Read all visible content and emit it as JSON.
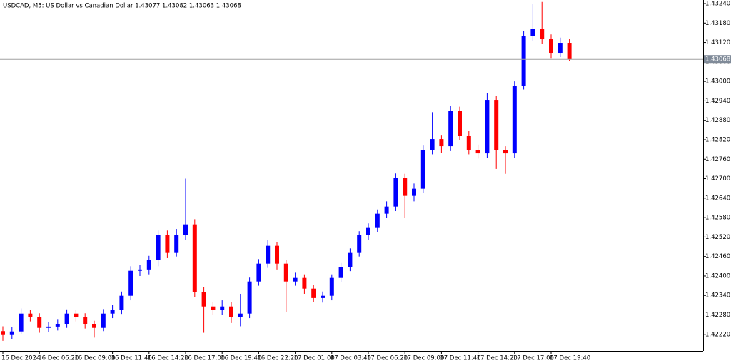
{
  "chart_data": {
    "type": "candlestick",
    "title": "USDCAD, M5:  US Dollar vs Canadian Dollar  1.43077 1.43082 1.43063 1.43068",
    "categories": [
      "16 Dec 2024",
      null,
      null,
      null,
      "16 Dec 06:20",
      null,
      null,
      null,
      "16 Dec 09:00",
      null,
      null,
      null,
      "16 Dec 11:40",
      null,
      null,
      null,
      "16 Dec 14:20",
      null,
      null,
      null,
      "16 Dec 17:00",
      null,
      null,
      null,
      "16 Dec 19:40",
      null,
      null,
      null,
      "16 Dec 22:20",
      null,
      null,
      null,
      "17 Dec 01:00",
      null,
      null,
      null,
      "17 Dec 03:40",
      null,
      null,
      null,
      "17 Dec 06:20",
      null,
      null,
      null,
      "17 Dec 09:00",
      null,
      null,
      null,
      "17 Dec 11:40",
      null,
      null,
      null,
      "17 Dec 14:20",
      null,
      null,
      null,
      "17 Dec 17:00",
      null,
      null,
      null,
      "17 Dec 19:40",
      null,
      null
    ],
    "open": [
      1.4223,
      1.42218,
      1.42229,
      1.42284,
      1.42273,
      1.4224,
      1.42244,
      1.42251,
      1.42284,
      1.42273,
      1.42251,
      1.4224,
      1.42284,
      1.42295,
      1.42339,
      1.42416,
      1.4242,
      1.42449,
      1.42526,
      1.42471,
      1.42526,
      1.42559,
      1.4235,
      1.42306,
      1.42295,
      1.42306,
      1.42273,
      1.42284,
      1.42383,
      1.42438,
      1.42493,
      1.42438,
      1.42383,
      1.42394,
      1.42361,
      1.42332,
      1.42339,
      1.42394,
      1.42427,
      1.42471,
      1.42526,
      1.42548,
      1.42592,
      1.42614,
      1.42702,
      1.42647,
      1.42669,
      1.42789,
      1.42822,
      1.428,
      1.4291,
      1.42833,
      1.42789,
      1.42778,
      1.42943,
      1.42789,
      1.42778,
      1.42987,
      1.43141,
      1.43163,
      1.4313,
      1.43086,
      1.43119
    ],
    "high": [
      1.42245,
      1.42242,
      1.423,
      1.42296,
      1.42285,
      1.42258,
      1.42265,
      1.42297,
      1.42296,
      1.42285,
      1.42262,
      1.42298,
      1.4231,
      1.42352,
      1.4243,
      1.42435,
      1.42462,
      1.4254,
      1.4254,
      1.42545,
      1.427,
      1.42575,
      1.42365,
      1.4232,
      1.42325,
      1.4232,
      1.42345,
      1.42395,
      1.42452,
      1.4251,
      1.42505,
      1.4245,
      1.4241,
      1.42405,
      1.42372,
      1.42352,
      1.42405,
      1.4244,
      1.42485,
      1.42538,
      1.42562,
      1.42605,
      1.4263,
      1.42716,
      1.42715,
      1.42685,
      1.42802,
      1.42905,
      1.42835,
      1.42925,
      1.42922,
      1.42848,
      1.42805,
      1.42965,
      1.42955,
      1.428,
      1.43,
      1.43155,
      1.4324,
      1.43245,
      1.43145,
      1.43135,
      1.4313
    ],
    "low": [
      1.422,
      1.42205,
      1.4222,
      1.4226,
      1.42225,
      1.42228,
      1.42232,
      1.4224,
      1.4226,
      1.42238,
      1.4221,
      1.4223,
      1.4227,
      1.42283,
      1.42325,
      1.424,
      1.42405,
      1.4243,
      1.42455,
      1.4246,
      1.4251,
      1.42335,
      1.42225,
      1.4228,
      1.4228,
      1.42255,
      1.42245,
      1.4227,
      1.4237,
      1.42425,
      1.4242,
      1.4229,
      1.4237,
      1.42345,
      1.4232,
      1.42318,
      1.42325,
      1.4238,
      1.42415,
      1.4246,
      1.42512,
      1.42535,
      1.4258,
      1.426,
      1.4258,
      1.4263,
      1.42655,
      1.42775,
      1.4278,
      1.42785,
      1.42818,
      1.42775,
      1.42762,
      1.42765,
      1.4273,
      1.42715,
      1.42765,
      1.42975,
      1.43125,
      1.43115,
      1.4307,
      1.43075,
      1.43063
    ],
    "close": [
      1.42218,
      1.42229,
      1.42284,
      1.42273,
      1.4224,
      1.42244,
      1.42251,
      1.42284,
      1.42273,
      1.42251,
      1.4224,
      1.42284,
      1.42295,
      1.42339,
      1.42416,
      1.4242,
      1.42449,
      1.42526,
      1.42471,
      1.42526,
      1.42559,
      1.4235,
      1.42306,
      1.42295,
      1.42306,
      1.42273,
      1.42284,
      1.42383,
      1.42438,
      1.42493,
      1.42438,
      1.42383,
      1.42394,
      1.42361,
      1.42332,
      1.42339,
      1.42394,
      1.42427,
      1.42471,
      1.42526,
      1.42548,
      1.42592,
      1.42614,
      1.42702,
      1.42647,
      1.42669,
      1.42789,
      1.42822,
      1.428,
      1.4291,
      1.42833,
      1.42789,
      1.42778,
      1.42943,
      1.42789,
      1.42778,
      1.42987,
      1.43141,
      1.43163,
      1.4313,
      1.43086,
      1.43119,
      1.43068
    ],
    "up_color": "#0000ff",
    "down_color": "#ff0000",
    "current_price": 1.43068,
    "ylim": [
      1.42169,
      1.43251
    ],
    "yticks": [
      {
        "value": 1.4222,
        "label": "1.42220"
      },
      {
        "value": 1.4228,
        "label": "1.42280"
      },
      {
        "value": 1.4234,
        "label": "1.42340"
      },
      {
        "value": 1.424,
        "label": "1.42400"
      },
      {
        "value": 1.4246,
        "label": "1.42460"
      },
      {
        "value": 1.4252,
        "label": "1.42520"
      },
      {
        "value": 1.4258,
        "label": "1.42580"
      },
      {
        "value": 1.4264,
        "label": "1.42640"
      },
      {
        "value": 1.427,
        "label": "1.42700"
      },
      {
        "value": 1.4276,
        "label": "1.42760"
      },
      {
        "value": 1.4282,
        "label": "1.42820"
      },
      {
        "value": 1.4288,
        "label": "1.42880"
      },
      {
        "value": 1.4294,
        "label": "1.42940"
      },
      {
        "value": 1.43,
        "label": "1.43000"
      },
      {
        "value": 1.4306,
        "label": "1.43060"
      },
      {
        "value": 1.4312,
        "label": "1.43120"
      },
      {
        "value": 1.4318,
        "label": "1.43180"
      },
      {
        "value": 1.4324,
        "label": "1.43240"
      }
    ]
  }
}
